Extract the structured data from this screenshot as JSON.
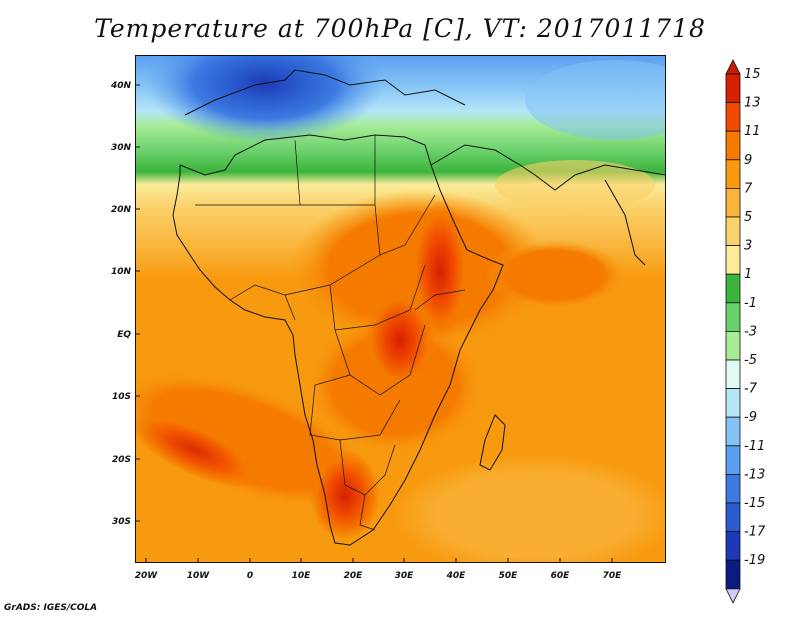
{
  "title": "Temperature at 700hPa [C], VT: 2017011718",
  "credit": "GrADS: IGES/COLA",
  "axes": {
    "lat_ticks": [
      "40N",
      "30N",
      "20N",
      "10N",
      "EQ",
      "10S",
      "20S",
      "30S"
    ],
    "lon_ticks": [
      "20W",
      "10W",
      "0",
      "10E",
      "20E",
      "30E",
      "40E",
      "50E",
      "60E",
      "70E"
    ]
  },
  "colorbar": {
    "labels": [
      "15",
      "13",
      "11",
      "9",
      "7",
      "5",
      "3",
      "1",
      "-1",
      "-3",
      "-5",
      "-7",
      "-9",
      "-11",
      "-13",
      "-15",
      "-17",
      "-19"
    ],
    "colors": [
      "#d62000",
      "#f04a00",
      "#f57a00",
      "#f89a10",
      "#f9b33a",
      "#fad16a",
      "#fbec9a",
      "#3cb43c",
      "#6ad06a",
      "#a6ec96",
      "#e0fbf2",
      "#b5e6f8",
      "#84c3f5",
      "#5a9ff0",
      "#3c7ae2",
      "#2a5ccf",
      "#1c3ab8",
      "#0d1a80"
    ],
    "min_color": "#d6c9f9",
    "max_color": "#cc1a00"
  }
}
